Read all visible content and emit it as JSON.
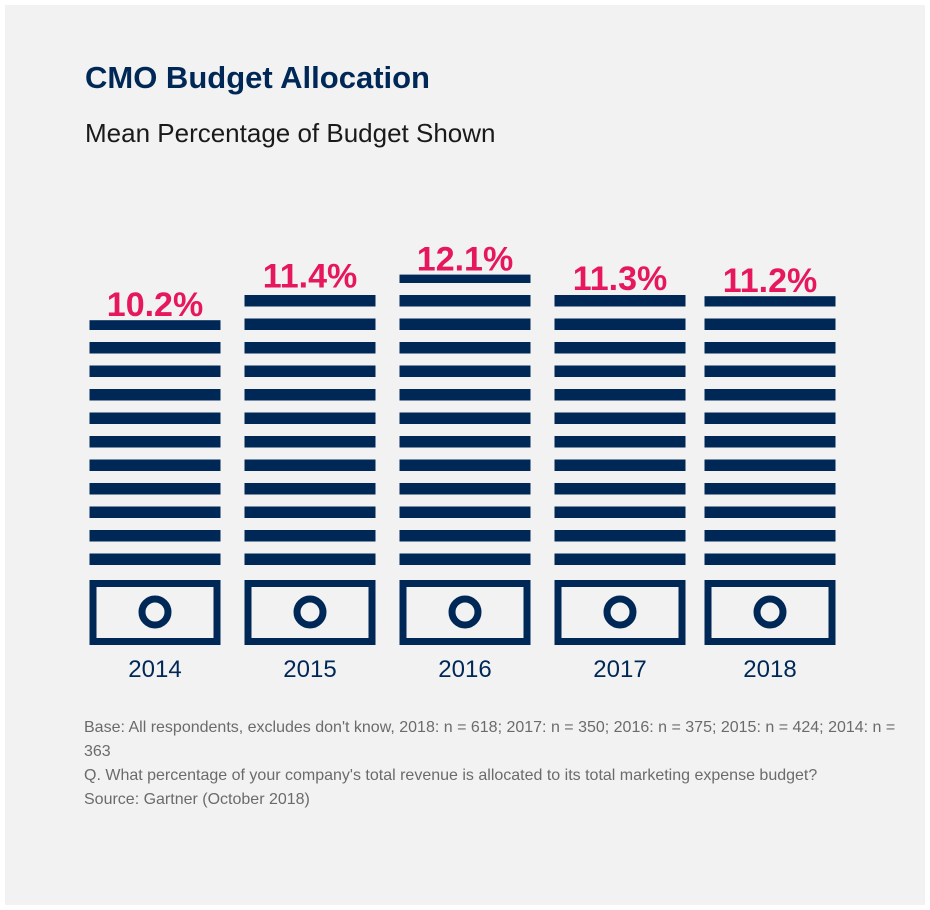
{
  "chart_data": {
    "type": "pictograph-bar",
    "title": "CMO Budget Allocation",
    "subtitle": "Mean Percentage of Budget Shown",
    "categories": [
      "2014",
      "2015",
      "2016",
      "2017",
      "2018"
    ],
    "values": [
      10.2,
      11.4,
      12.1,
      11.3,
      11.2
    ],
    "value_labels": [
      "10.2%",
      "11.4%",
      "12.1%",
      "11.3%",
      "11.2%"
    ],
    "color": "#002856",
    "label_color": "#e6175c",
    "notes": [
      "Base: All respondents, excludes don't know, 2018: n = 618; 2017: n = 350; 2016: n = 375; 2015: n = 424; 2014: n = 363",
      "Q. What percentage of your company's total revenue is allocated to its total marketing expense budget?",
      "Source: Gartner (October 2018)"
    ]
  }
}
